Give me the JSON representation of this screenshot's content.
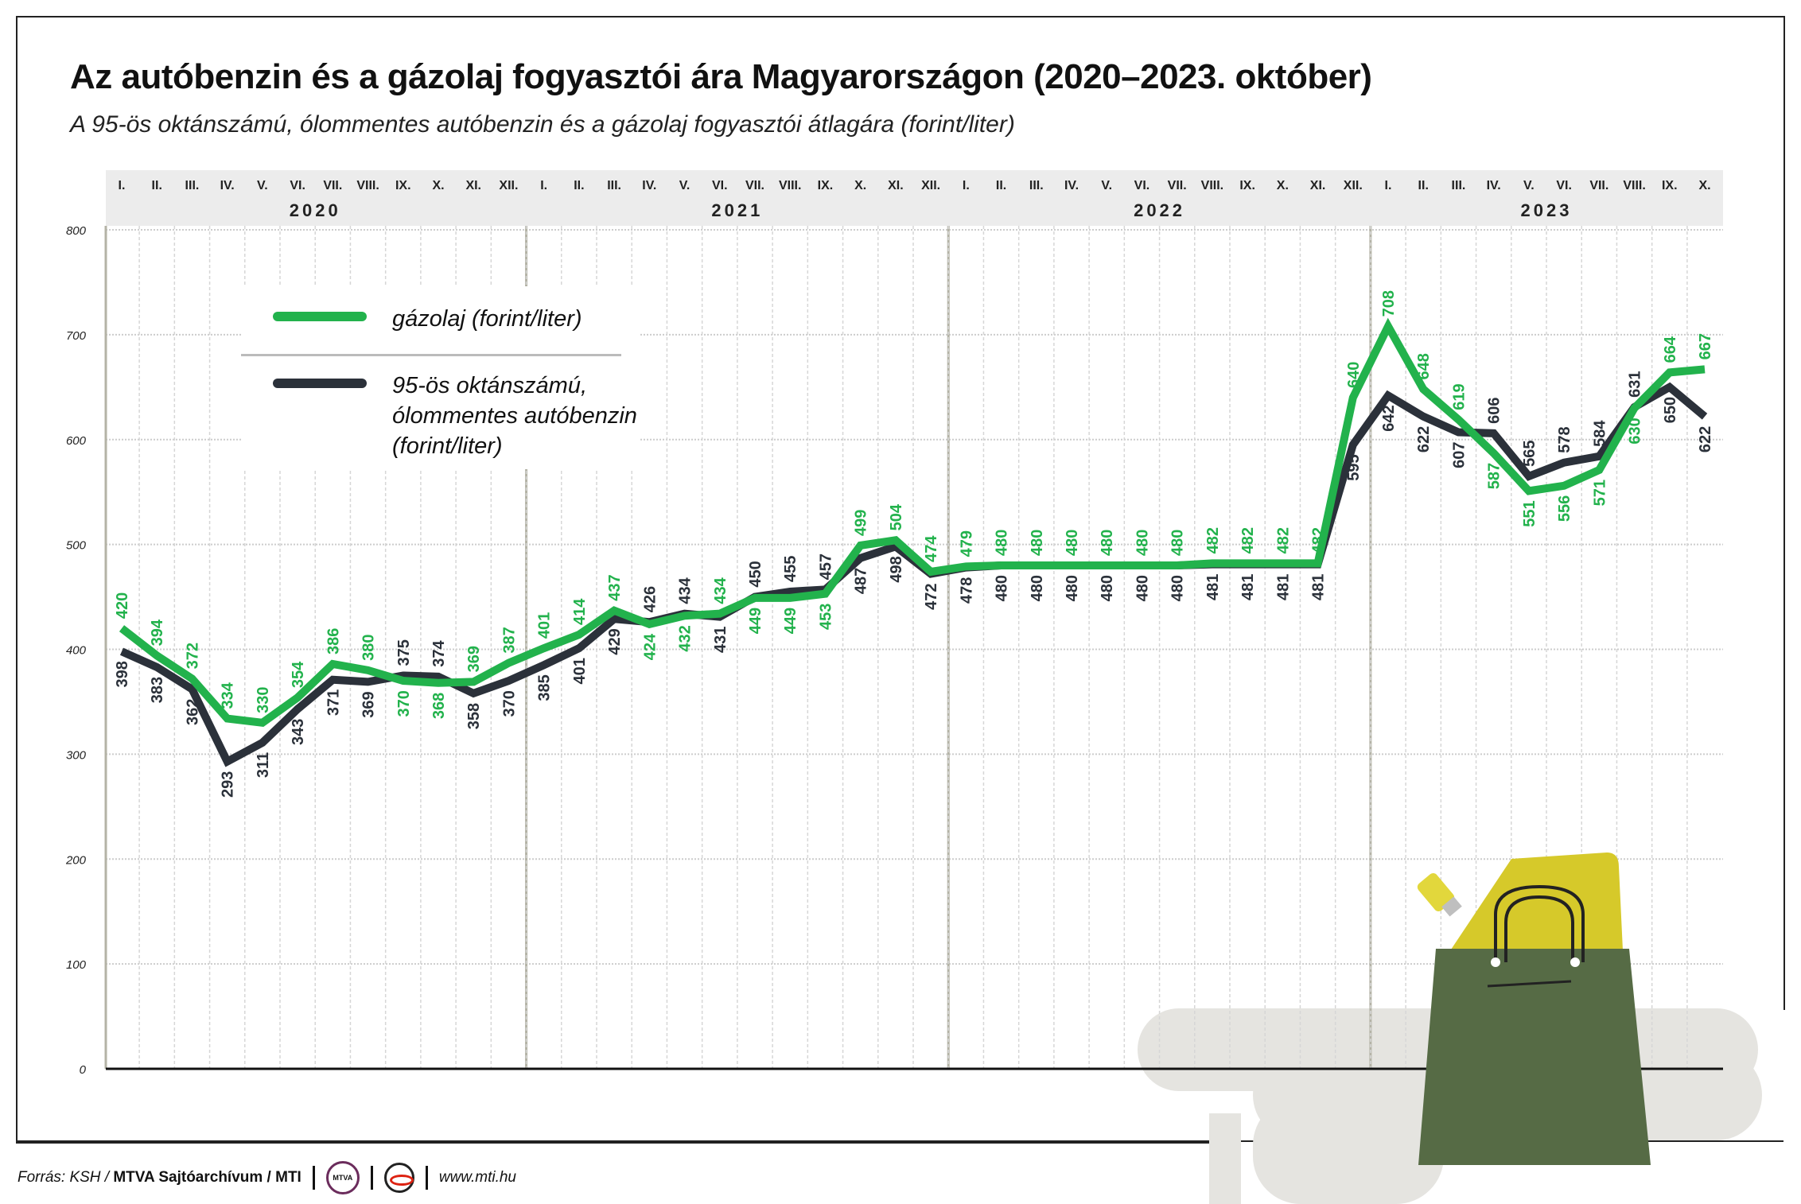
{
  "title": "Az autóbenzin és a gázolaj fogyasztói ára Magyarországon (2020–2023. október)",
  "subtitle": "A 95-ös oktánszámú, ólommentes autóbenzin és a gázolaj fogyasztói átlagára (forint/liter)",
  "legend": {
    "diesel": "gázolaj (forint/liter)",
    "petrol_lines": [
      "95-ös oktánszámú,",
      "ólommentes autóbenzin",
      "(forint/liter)"
    ]
  },
  "footer": {
    "source_prefix": "Forrás: KSH / ",
    "source_bold": "MTVA Sajtóarchívum / MTI",
    "logo_text": "MTVA",
    "url": "www.mti.hu"
  },
  "chart_data": {
    "type": "line",
    "title": "Az autóbenzin és a gázolaj fogyasztói ára Magyarországon (2020–2023. október)",
    "ylabel": "forint/liter",
    "ylim": [
      0,
      800
    ],
    "yticks": [
      0,
      100,
      200,
      300,
      400,
      500,
      600,
      700,
      800
    ],
    "grid": true,
    "years": [
      "2020",
      "2021",
      "2022",
      "2023"
    ],
    "months": [
      "I.",
      "II.",
      "III.",
      "IV.",
      "V.",
      "VI.",
      "VII.",
      "VIII.",
      "IX.",
      "X.",
      "XI.",
      "XII."
    ],
    "x_count": 46,
    "series": [
      {
        "name": "gázolaj (forint/liter)",
        "color": "#22b24c",
        "values": [
          420,
          394,
          372,
          334,
          330,
          354,
          386,
          380,
          370,
          368,
          369,
          387,
          401,
          414,
          437,
          424,
          432,
          434,
          449,
          449,
          453,
          499,
          504,
          474,
          479,
          480,
          480,
          480,
          480,
          480,
          480,
          482,
          482,
          482,
          482,
          640,
          708,
          648,
          619,
          587,
          551,
          556,
          571,
          630,
          664,
          667
        ]
      },
      {
        "name": "95-ös oktánszámú, ólommentes autóbenzin (forint/liter)",
        "color": "#2b313a",
        "values": [
          398,
          383,
          362,
          293,
          311,
          343,
          371,
          369,
          375,
          374,
          358,
          370,
          385,
          401,
          429,
          426,
          434,
          431,
          450,
          455,
          457,
          487,
          498,
          472,
          478,
          480,
          480,
          480,
          480,
          480,
          480,
          481,
          481,
          481,
          481,
          595,
          642,
          622,
          607,
          606,
          565,
          578,
          584,
          631,
          650,
          622
        ]
      }
    ]
  }
}
